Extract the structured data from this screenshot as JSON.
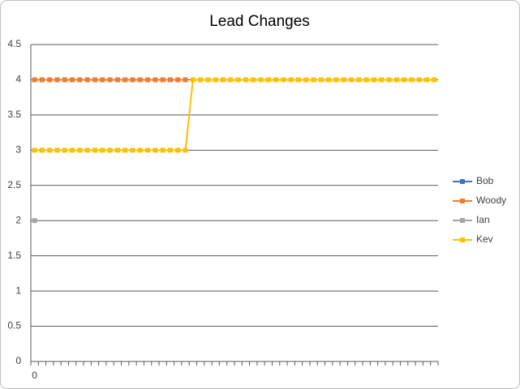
{
  "chart_data": {
    "type": "line",
    "title": "Lead Changes",
    "categories": [
      "0",
      null,
      null,
      null,
      null,
      null,
      null,
      null,
      null,
      null,
      null,
      null,
      null,
      null,
      null,
      null,
      null,
      null,
      null,
      null,
      null,
      null,
      null,
      null,
      null,
      null,
      null,
      null,
      null,
      null,
      null,
      null,
      null,
      null,
      null,
      null,
      null,
      null,
      null,
      null,
      null,
      null,
      null,
      null,
      null,
      null,
      null,
      null,
      null,
      null,
      null,
      null,
      null,
      null
    ],
    "series": [
      {
        "name": "Bob",
        "color": "#4472c4",
        "values": [
          null,
          null,
          null,
          null,
          null,
          null,
          null,
          null,
          null,
          null,
          null,
          null,
          null,
          null,
          null,
          null,
          null,
          null,
          null,
          null,
          null,
          null,
          null,
          null,
          null,
          null,
          null,
          null,
          null,
          null,
          null,
          null,
          null,
          null,
          null,
          null,
          null,
          null,
          null,
          null,
          null,
          null,
          null,
          null,
          null,
          null,
          null,
          null,
          null,
          null,
          null,
          null,
          null,
          null
        ]
      },
      {
        "name": "Woody",
        "color": "#ed7d31",
        "values": [
          4,
          4,
          4,
          4,
          4,
          4,
          4,
          4,
          4,
          4,
          4,
          4,
          4,
          4,
          4,
          4,
          4,
          4,
          4,
          4,
          4,
          null,
          null,
          null,
          null,
          null,
          null,
          null,
          null,
          null,
          null,
          null,
          null,
          null,
          null,
          null,
          null,
          null,
          null,
          null,
          null,
          null,
          null,
          null,
          null,
          null,
          null,
          null,
          null,
          null,
          null,
          null,
          null,
          null
        ]
      },
      {
        "name": "Ian",
        "color": "#a5a5a5",
        "values": [
          2,
          null,
          null,
          null,
          null,
          null,
          null,
          null,
          null,
          null,
          null,
          null,
          null,
          null,
          null,
          null,
          null,
          null,
          null,
          null,
          null,
          null,
          null,
          null,
          null,
          null,
          null,
          null,
          null,
          null,
          null,
          null,
          null,
          null,
          null,
          null,
          null,
          null,
          null,
          null,
          null,
          null,
          null,
          null,
          null,
          null,
          null,
          null,
          null,
          null,
          null,
          null,
          null,
          null
        ]
      },
      {
        "name": "Kev",
        "color": "#ffc000",
        "values": [
          3,
          3,
          3,
          3,
          3,
          3,
          3,
          3,
          3,
          3,
          3,
          3,
          3,
          3,
          3,
          3,
          3,
          3,
          3,
          3,
          3,
          4,
          4,
          4,
          4,
          4,
          4,
          4,
          4,
          4,
          4,
          4,
          4,
          4,
          4,
          4,
          4,
          4,
          4,
          4,
          4,
          4,
          4,
          4,
          4,
          4,
          4,
          4,
          4,
          4,
          4,
          4,
          4,
          4
        ]
      }
    ],
    "ylim": [
      0,
      4.5
    ],
    "yticks": [
      0,
      0.5,
      1,
      1.5,
      2,
      2.5,
      3,
      3.5,
      4,
      4.5
    ],
    "grid": true,
    "legend": "right"
  }
}
